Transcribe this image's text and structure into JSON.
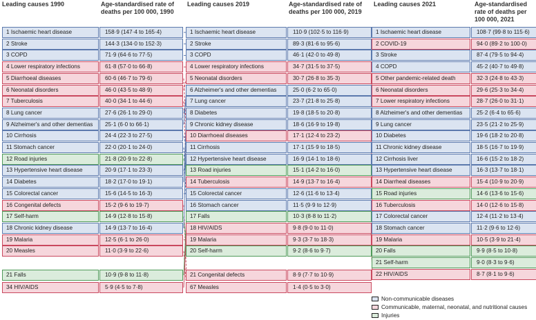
{
  "headers": {
    "c1990_cause": "Leading causes 1990",
    "c1990_rate": "Age-standardised rate of deaths per 100 000, 1990",
    "c2019_cause": "Leading causes 2019",
    "c2019_rate": "Age-standardised rate of deaths per 100 000, 2019",
    "c2021_cause": "Leading causes 2021",
    "c2021_rate": "Age-standardised rate of deaths per 100 000, 2021"
  },
  "colors": {
    "ncd": "#5b79ad",
    "cmnn": "#c9485e",
    "inj": "#4f9a59"
  },
  "columns": {
    "c1990": [
      {
        "cause": "1 Ischaemic heart disease",
        "rate": "158·9 (147·4 to 165·4)",
        "cat": "ncd"
      },
      {
        "cause": "2 Stroke",
        "rate": "144·3 (134·0 to 152·3)",
        "cat": "ncd"
      },
      {
        "cause": "3 COPD",
        "rate": "71·9 (64·6 to 77·5)",
        "cat": "ncd"
      },
      {
        "cause": "4 Lower respiratory infections",
        "rate": "61·8 (57·0 to 66·8)",
        "cat": "cmnn"
      },
      {
        "cause": "5 Diarrhoeal diseases",
        "rate": "60·6 (46·7 to 79·6)",
        "cat": "cmnn"
      },
      {
        "cause": "6 Neonatal disorders",
        "rate": "46·0 (43·5 to 48·9)",
        "cat": "cmnn"
      },
      {
        "cause": "7 Tuberculosis",
        "rate": "40·0 (34·1 to 44·6)",
        "cat": "cmnn"
      },
      {
        "cause": "8 Lung cancer",
        "rate": "27·6 (26·1 to 29·0)",
        "cat": "ncd"
      },
      {
        "cause": "9 Alzheimer's and other dementias",
        "rate": "25·1 (6·0 to 66·1)",
        "cat": "ncd"
      },
      {
        "cause": "10 Cirrhosis",
        "rate": "24·4 (22·3 to 27·5)",
        "cat": "ncd"
      },
      {
        "cause": "11 Stomach cancer",
        "rate": "22·0 (20·1 to 24·0)",
        "cat": "ncd"
      },
      {
        "cause": "12 Road injuries",
        "rate": "21·8 (20·9 to 22·8)",
        "cat": "inj"
      },
      {
        "cause": "13 Hypertensive heart disease",
        "rate": "20·9 (17·1 to 23·3)",
        "cat": "ncd"
      },
      {
        "cause": "14 Diabetes",
        "rate": "18·2 (17·0 to 19·1)",
        "cat": "ncd"
      },
      {
        "cause": "15 Colorectal cancer",
        "rate": "15·6 (14·5 to 16·3)",
        "cat": "ncd"
      },
      {
        "cause": "16 Congenital defects",
        "rate": "15·2 (9·6 to 19·7)",
        "cat": "cmnn"
      },
      {
        "cause": "17 Self-harm",
        "rate": "14·9 (12·8 to 15·8)",
        "cat": "inj"
      },
      {
        "cause": "18 Chronic kidney disease",
        "rate": "14·9 (13·7 to 16·4)",
        "cat": "ncd"
      },
      {
        "cause": "19 Malaria",
        "rate": "12·5 (6·1 to 26·0)",
        "cat": "cmnn"
      },
      {
        "cause": "20 Measles",
        "rate": "11·0 (3·9 to 22·6)",
        "cat": "cmnn"
      },
      {
        "cause": "21 Falls",
        "rate": "10·9 (9·8 to 11·8)",
        "cat": "inj"
      },
      {
        "cause": "34 HIV/AIDS",
        "rate": "5·9 (4·5 to 7·8)",
        "cat": "cmnn"
      }
    ],
    "c2019": [
      {
        "cause": "1 Ischaemic heart disease",
        "rate": "110·9 (102·5 to 116·9)",
        "cat": "ncd"
      },
      {
        "cause": "2 Stroke",
        "rate": "89·3 (81·6 to 95·6)",
        "cat": "ncd"
      },
      {
        "cause": "3 COPD",
        "rate": "46·1 (42·0 to 49·8)",
        "cat": "ncd"
      },
      {
        "cause": "4 Lower respiratory infections",
        "rate": "34·7 (31·5 to 37·5)",
        "cat": "cmnn"
      },
      {
        "cause": "5 Neonatal disorders",
        "rate": "30·7 (26·8 to 35·3)",
        "cat": "cmnn"
      },
      {
        "cause": "6 Alzheimer's and other dementias",
        "rate": "25·0 (6·2 to 65·0)",
        "cat": "ncd"
      },
      {
        "cause": "7 Lung cancer",
        "rate": "23·7 (21·8 to 25·8)",
        "cat": "ncd"
      },
      {
        "cause": "8 Diabetes",
        "rate": "19·8 (18·5 to 20·8)",
        "cat": "ncd"
      },
      {
        "cause": "9 Chronic kidney disease",
        "rate": "18·6 (16·9 to 19·8)",
        "cat": "ncd"
      },
      {
        "cause": "10 Diarrhoeal diseases",
        "rate": "17·1 (12·4 to 23·2)",
        "cat": "cmnn"
      },
      {
        "cause": "11 Cirrhosis",
        "rate": "17·1 (15·9 to 18·5)",
        "cat": "ncd"
      },
      {
        "cause": "12 Hypertensive heart disease",
        "rate": "16·9 (14·1 to 18·6)",
        "cat": "ncd"
      },
      {
        "cause": "13 Road injuries",
        "rate": "15·1 (14·2 to 16·0)",
        "cat": "inj"
      },
      {
        "cause": "14 Tuberculosis",
        "rate": "14·9 (13·7 to 16·4)",
        "cat": "cmnn"
      },
      {
        "cause": "15 Colorectal cancer",
        "rate": "12·6 (11·6 to 13·4)",
        "cat": "ncd"
      },
      {
        "cause": "16 Stomach cancer",
        "rate": "11·5 (9·9 to 12·9)",
        "cat": "ncd"
      },
      {
        "cause": "17 Falls",
        "rate": "10·3 (8·8 to 11·2)",
        "cat": "inj"
      },
      {
        "cause": "18 HIV/AIDS",
        "rate": "9·8 (9·0 to 11·0)",
        "cat": "cmnn"
      },
      {
        "cause": "19 Malaria",
        "rate": "9·3 (3·7 to 18·3)",
        "cat": "cmnn"
      },
      {
        "cause": "20 Self-harm",
        "rate": "9·2 (8·6 to 9·7)",
        "cat": "inj"
      },
      {
        "cause": "21 Congenital defects",
        "rate": "8·9 (7·7 to 10·9)",
        "cat": "cmnn"
      },
      {
        "cause": "67 Measles",
        "rate": "1·4 (0·5 to 3·0)",
        "cat": "cmnn"
      }
    ],
    "c2021": [
      {
        "cause": "1 Ischaemic heart disease",
        "rate": "108·7 (99·8 to 115·6)",
        "cat": "ncd"
      },
      {
        "cause": "2 COVID-19",
        "rate": "94·0 (89·2 to 100·0)",
        "cat": "cmnn"
      },
      {
        "cause": "3 Stroke",
        "rate": "87·4 (79·5 to 94·4)",
        "cat": "ncd"
      },
      {
        "cause": "4 COPD",
        "rate": "45·2 (40·7 to 49·8)",
        "cat": "ncd"
      },
      {
        "cause": "5 Other pandemic-related death",
        "rate": "32·3 (24·8 to 43·3)",
        "cat": "cmnn"
      },
      {
        "cause": "6 Neonatal disorders",
        "rate": "29·6 (25·3 to 34·4)",
        "cat": "cmnn"
      },
      {
        "cause": "7 Lower respiratory infections",
        "rate": "28·7 (26·0 to 31·1)",
        "cat": "cmnn"
      },
      {
        "cause": "8 Alzheimer's and other dementias",
        "rate": "25·2 (6·4 to 65·6)",
        "cat": "ncd"
      },
      {
        "cause": "9 Lung cancer",
        "rate": "23·5 (21·2 to 25·9)",
        "cat": "ncd"
      },
      {
        "cause": "10 Diabetes",
        "rate": "19·6 (18·2 to 20·8)",
        "cat": "ncd"
      },
      {
        "cause": "11 Chronic kidney disease",
        "rate": "18·5 (16·7 to 19·9)",
        "cat": "ncd"
      },
      {
        "cause": "12 Cirrhosis liver",
        "rate": "16·6 (15·2 to 18·2)",
        "cat": "ncd"
      },
      {
        "cause": "13 Hypertensive heart disease",
        "rate": "16·3 (13·7 to 18·1)",
        "cat": "ncd"
      },
      {
        "cause": "14 Diarrheal diseases",
        "rate": "15·4 (10·9 to 20·9)",
        "cat": "cmnn"
      },
      {
        "cause": "15 Road injuries",
        "rate": "14·6 (13·6 to 15·6)",
        "cat": "inj"
      },
      {
        "cause": "16 Tuberculosis",
        "rate": "14·0 (12·6 to 15·8)",
        "cat": "cmnn"
      },
      {
        "cause": "17 Colorectal cancer",
        "rate": "12·4 (11·2 to 13·4)",
        "cat": "ncd"
      },
      {
        "cause": "18 Stomach cancer",
        "rate": "11·2 (9·6 to 12·6)",
        "cat": "ncd"
      },
      {
        "cause": "19 Malaria",
        "rate": "10·5 (3·9 to 21·4)",
        "cat": "cmnn"
      },
      {
        "cause": "20 Falls",
        "rate": "9·9 (8·5 to 10·8)",
        "cat": "inj"
      },
      {
        "cause": "21 Self-harm",
        "rate": "9·0 (8·3 to 9·6)",
        "cat": "inj"
      },
      {
        "cause": "22 HIV/AIDS",
        "rate": "8·7 (8·1 to 9·6)",
        "cat": "cmnn"
      }
    ]
  },
  "links_1990_2019": [
    [
      0,
      0,
      "s"
    ],
    [
      1,
      1,
      "s"
    ],
    [
      2,
      2,
      "s"
    ],
    [
      3,
      3,
      "s"
    ],
    [
      4,
      9,
      "d"
    ],
    [
      5,
      4,
      "d"
    ],
    [
      6,
      13,
      "d"
    ],
    [
      7,
      6,
      "s"
    ],
    [
      8,
      5,
      "s"
    ],
    [
      9,
      10,
      "d"
    ],
    [
      10,
      15,
      "d"
    ],
    [
      11,
      12,
      "d"
    ],
    [
      12,
      11,
      "s"
    ],
    [
      13,
      7,
      "s"
    ],
    [
      14,
      14,
      "s"
    ],
    [
      15,
      20,
      "d"
    ],
    [
      16,
      19,
      "d"
    ],
    [
      17,
      8,
      "s"
    ],
    [
      18,
      18,
      "d"
    ],
    [
      19,
      21,
      "d"
    ],
    [
      20,
      16,
      "s"
    ],
    [
      21,
      17,
      "s"
    ]
  ],
  "links_2019_2021": [
    [
      0,
      0,
      "s"
    ],
    [
      1,
      2,
      "d"
    ],
    [
      2,
      3,
      "d"
    ],
    [
      3,
      6,
      "d"
    ],
    [
      4,
      5,
      "d"
    ],
    [
      5,
      7,
      "d"
    ],
    [
      6,
      8,
      "d"
    ],
    [
      7,
      9,
      "d"
    ],
    [
      8,
      10,
      "d"
    ],
    [
      9,
      13,
      "s"
    ],
    [
      10,
      11,
      "d"
    ],
    [
      11,
      12,
      "d"
    ],
    [
      12,
      14,
      "d"
    ],
    [
      13,
      15,
      "d"
    ],
    [
      14,
      16,
      "d"
    ],
    [
      15,
      17,
      "d"
    ],
    [
      16,
      19,
      "d"
    ],
    [
      17,
      21,
      "s"
    ],
    [
      18,
      18,
      "s"
    ],
    [
      19,
      20,
      "d"
    ]
  ],
  "legend": [
    {
      "label": "Non-communicable diseases",
      "cat": "ncd"
    },
    {
      "label": "Communicable, maternal, neonatal, and nutritional causes",
      "cat": "cmnn"
    },
    {
      "label": "Injuries",
      "cat": "inj"
    }
  ]
}
